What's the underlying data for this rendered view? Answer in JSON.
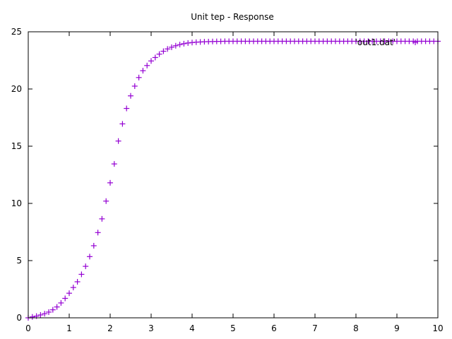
{
  "chart_data": {
    "type": "scatter",
    "title": "Unit tep - Response",
    "xlabel": "",
    "ylabel": "",
    "xlim": [
      0,
      10
    ],
    "ylim": [
      0,
      25
    ],
    "xticks": [
      0,
      1,
      2,
      3,
      4,
      5,
      6,
      7,
      8,
      9,
      10
    ],
    "yticks": [
      0,
      5,
      10,
      15,
      20,
      25
    ],
    "xtick_labels": [
      "0",
      "1",
      "2",
      "3",
      "4",
      "5",
      "6",
      "7",
      "8",
      "9",
      "10"
    ],
    "ytick_labels": [
      "0",
      "5",
      "10",
      "15",
      "20",
      "25"
    ],
    "grid": false,
    "legend_position": "top-right",
    "colors": {
      "series": "#9400d3",
      "axes": "#000000"
    },
    "series": [
      {
        "name": "'out1.dat'",
        "marker": "plus",
        "x": [
          0,
          0.1,
          0.2,
          0.3,
          0.4,
          0.5,
          0.6,
          0.7,
          0.8,
          0.9,
          1.0,
          1.1,
          1.2,
          1.3,
          1.4,
          1.5,
          1.6,
          1.7,
          1.8,
          1.9,
          2.0,
          2.1,
          2.2,
          2.3,
          2.4,
          2.5,
          2.6,
          2.7,
          2.8,
          2.9,
          3.0,
          3.1,
          3.2,
          3.3,
          3.4,
          3.5,
          3.6,
          3.7,
          3.8,
          3.9,
          4.0,
          4.1,
          4.2,
          4.3,
          4.4,
          4.5,
          4.6,
          4.7,
          4.8,
          4.9,
          5.0,
          5.1,
          5.2,
          5.3,
          5.4,
          5.5,
          5.6,
          5.7,
          5.8,
          5.9,
          6.0,
          6.1,
          6.2,
          6.3,
          6.4,
          6.5,
          6.6,
          6.7,
          6.8,
          6.9,
          7.0,
          7.1,
          7.2,
          7.3,
          7.4,
          7.5,
          7.6,
          7.7,
          7.8,
          7.9,
          8.0,
          8.1,
          8.2,
          8.3,
          8.4,
          8.5,
          8.6,
          8.7,
          8.8,
          8.9,
          9.0,
          9.1,
          9.2,
          9.3,
          9.4,
          9.5,
          9.6,
          9.7,
          9.8,
          9.9,
          10.0
        ],
        "y": [
          0,
          0.08,
          0.15,
          0.25,
          0.36,
          0.5,
          0.7,
          0.95,
          1.3,
          1.7,
          2.15,
          2.65,
          3.15,
          3.8,
          4.5,
          5.35,
          6.3,
          7.45,
          8.65,
          10.2,
          11.8,
          13.45,
          15.45,
          16.95,
          18.3,
          19.4,
          20.25,
          21.0,
          21.6,
          22.05,
          22.45,
          22.75,
          23.05,
          23.3,
          23.5,
          23.65,
          23.78,
          23.88,
          23.96,
          24.02,
          24.06,
          24.09,
          24.11,
          24.13,
          24.14,
          24.15,
          24.16,
          24.16,
          24.17,
          24.17,
          24.17,
          24.17,
          24.17,
          24.17,
          24.17,
          24.17,
          24.17,
          24.17,
          24.17,
          24.17,
          24.17,
          24.17,
          24.17,
          24.17,
          24.17,
          24.17,
          24.17,
          24.17,
          24.17,
          24.17,
          24.17,
          24.17,
          24.17,
          24.17,
          24.17,
          24.17,
          24.17,
          24.17,
          24.17,
          24.17,
          24.17,
          24.17,
          24.17,
          24.17,
          24.17,
          24.17,
          24.17,
          24.17,
          24.17,
          24.17,
          24.17,
          24.17,
          24.17,
          24.17,
          24.17,
          24.17,
          24.17,
          24.17,
          24.17,
          24.17,
          24.17
        ]
      }
    ]
  }
}
